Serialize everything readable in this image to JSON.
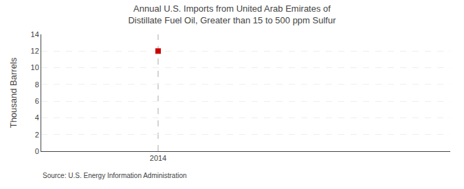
{
  "chart_data": {
    "type": "scatter",
    "title": "Annual U.S. Imports from United Arab Emirates of Distillate Fuel Oil, Greater than 15 to 500 ppm Sulfur",
    "ylabel": "Thousand Barrels",
    "annotations": [
      "Source: U.S. Energy Information Administration"
    ],
    "x": [
      2014
    ],
    "values": [
      12
    ],
    "color": "#cc0000",
    "marker": "square",
    "vlines": [
      2014
    ],
    "xlim": [
      2013.4,
      2015.5
    ],
    "xticks": [
      2014
    ],
    "ylim": [
      0,
      14
    ],
    "yticks": [
      0,
      2,
      4,
      6,
      8,
      10,
      12,
      14
    ],
    "grid": true
  }
}
